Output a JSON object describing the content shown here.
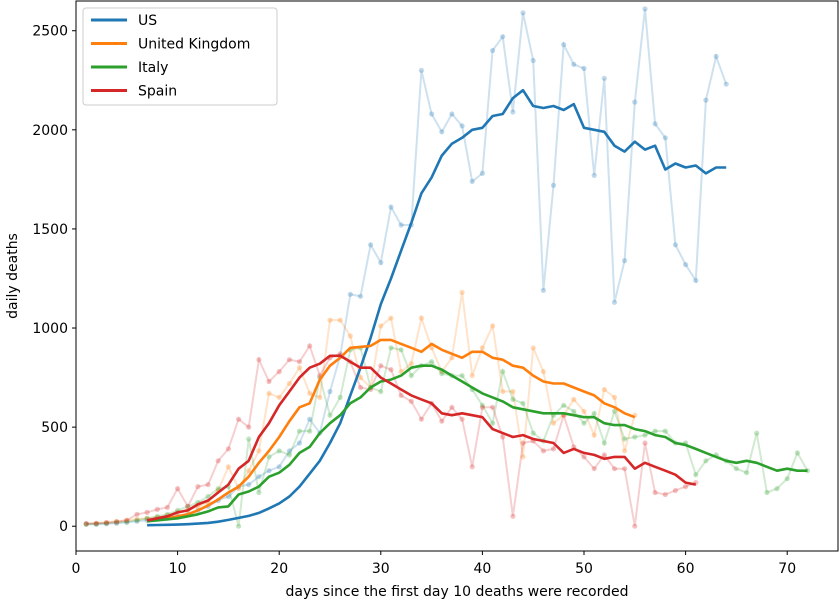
{
  "chart_data": {
    "type": "line",
    "title": "",
    "xlabel": "days since the first day 10 deaths were recorded",
    "ylabel": "daily deaths",
    "xlim": [
      0,
      75
    ],
    "ylim": [
      -125,
      2650
    ],
    "x_ticks": [
      0,
      10,
      20,
      30,
      40,
      50,
      60,
      70
    ],
    "y_ticks": [
      0,
      500,
      1000,
      1500,
      2000,
      2500
    ],
    "grid": false,
    "legend_position": "top-left",
    "series": [
      {
        "name": "US",
        "color": "#1f77b4",
        "raw_x": [
          1,
          2,
          3,
          4,
          5,
          6,
          7,
          8,
          9,
          10,
          11,
          12,
          13,
          14,
          15,
          16,
          17,
          18,
          19,
          20,
          21,
          22,
          23,
          24,
          25,
          26,
          27,
          28,
          29,
          30,
          31,
          32,
          33,
          34,
          35,
          36,
          37,
          38,
          39,
          40,
          41,
          42,
          43,
          44,
          45,
          46,
          47,
          48,
          49,
          50,
          51,
          52,
          53,
          54,
          55,
          56,
          57,
          58,
          59,
          60,
          61,
          62,
          63,
          64
        ],
        "raw_y": [
          10,
          9,
          12,
          15,
          20,
          25,
          30,
          35,
          40,
          50,
          60,
          80,
          100,
          130,
          150,
          200,
          210,
          250,
          280,
          300,
          380,
          420,
          540,
          470,
          680,
          860,
          1170,
          1160,
          1420,
          1330,
          1610,
          1520,
          1520,
          2300,
          2080,
          1990,
          2080,
          2020,
          1740,
          1780,
          2400,
          2470,
          2090,
          2590,
          2350,
          1190,
          1720,
          2430,
          2330,
          2310,
          1770,
          2260,
          1130,
          1340,
          2140,
          2610,
          2030,
          1960,
          1420,
          1320,
          1240,
          2150,
          2370,
          2230
        ],
        "avg_x": [
          7,
          8,
          9,
          10,
          11,
          12,
          13,
          14,
          15,
          16,
          17,
          18,
          19,
          20,
          21,
          22,
          23,
          24,
          25,
          26,
          27,
          28,
          29,
          30,
          31,
          32,
          33,
          34,
          35,
          36,
          37,
          38,
          39,
          40,
          41,
          42,
          43,
          44,
          45,
          46,
          47,
          48,
          49,
          50,
          51,
          52,
          53,
          54,
          55,
          56,
          57,
          58,
          59,
          60,
          61,
          62,
          63,
          64
        ],
        "avg_y": [
          5,
          6,
          7,
          8,
          10,
          13,
          17,
          23,
          32,
          42,
          52,
          67,
          90,
          115,
          150,
          200,
          265,
          330,
          420,
          520,
          660,
          800,
          950,
          1120,
          1250,
          1390,
          1530,
          1680,
          1760,
          1870,
          1930,
          1960,
          2000,
          2010,
          2070,
          2080,
          2160,
          2200,
          2120,
          2110,
          2120,
          2100,
          2130,
          2010,
          2000,
          1990,
          1920,
          1890,
          1940,
          1900,
          1920,
          1800,
          1830,
          1810,
          1820,
          1780,
          1810,
          1810
        ]
      },
      {
        "name": "United Kingdom",
        "color": "#ff7f0e",
        "raw_x": [
          1,
          2,
          3,
          4,
          5,
          6,
          7,
          8,
          9,
          10,
          11,
          12,
          13,
          14,
          15,
          16,
          17,
          18,
          19,
          20,
          21,
          22,
          23,
          24,
          25,
          26,
          27,
          28,
          29,
          30,
          31,
          32,
          33,
          34,
          35,
          36,
          37,
          38,
          39,
          40,
          41,
          42,
          43,
          44,
          45,
          46,
          47,
          48,
          49,
          50,
          51,
          52,
          53,
          54,
          55
        ],
        "raw_y": [
          10,
          15,
          20,
          25,
          30,
          35,
          40,
          45,
          55,
          70,
          80,
          100,
          120,
          180,
          300,
          190,
          280,
          380,
          670,
          650,
          720,
          800,
          670,
          650,
          1040,
          1040,
          960,
          750,
          700,
          1010,
          1050,
          780,
          820,
          1050,
          900,
          780,
          850,
          1180,
          760,
          900,
          1010,
          680,
          680,
          350,
          900,
          780,
          520,
          560,
          640,
          580,
          460,
          690,
          650,
          380,
          560
        ],
        "avg_x": [
          8,
          9,
          10,
          11,
          12,
          13,
          14,
          15,
          16,
          17,
          18,
          19,
          20,
          21,
          22,
          23,
          24,
          25,
          26,
          27,
          28,
          29,
          30,
          31,
          32,
          33,
          34,
          35,
          36,
          37,
          38,
          39,
          40,
          41,
          42,
          43,
          44,
          45,
          46,
          47,
          48,
          49,
          50,
          51,
          52,
          53,
          54,
          55
        ],
        "avg_y": [
          30,
          40,
          50,
          60,
          80,
          105,
          135,
          170,
          200,
          250,
          320,
          380,
          450,
          530,
          600,
          620,
          740,
          810,
          850,
          900,
          905,
          910,
          940,
          940,
          920,
          900,
          880,
          920,
          890,
          870,
          850,
          880,
          880,
          850,
          840,
          810,
          800,
          760,
          730,
          720,
          720,
          700,
          680,
          660,
          620,
          600,
          570,
          550
        ]
      },
      {
        "name": "Italy",
        "color": "#2ca02c",
        "raw_x": [
          1,
          2,
          3,
          4,
          5,
          6,
          7,
          8,
          9,
          10,
          11,
          12,
          13,
          14,
          15,
          16,
          17,
          18,
          19,
          20,
          21,
          22,
          23,
          24,
          25,
          26,
          27,
          28,
          29,
          30,
          31,
          32,
          33,
          34,
          35,
          36,
          37,
          38,
          39,
          40,
          41,
          42,
          43,
          44,
          45,
          46,
          47,
          48,
          49,
          50,
          51,
          52,
          53,
          54,
          55,
          56,
          57,
          58,
          59,
          60,
          61,
          62,
          63,
          64,
          65,
          66,
          67,
          68,
          69,
          70,
          71,
          72
        ],
        "raw_y": [
          10,
          12,
          15,
          20,
          22,
          30,
          40,
          50,
          60,
          80,
          100,
          120,
          150,
          190,
          200,
          0,
          440,
          170,
          350,
          380,
          360,
          480,
          480,
          750,
          560,
          650,
          890,
          900,
          700,
          680,
          900,
          890,
          760,
          810,
          830,
          770,
          760,
          760,
          690,
          610,
          520,
          780,
          640,
          620,
          470,
          430,
          560,
          610,
          580,
          520,
          570,
          420,
          580,
          440,
          450,
          460,
          480,
          480,
          420,
          420,
          260,
          330,
          360,
          330,
          290,
          270,
          470,
          170,
          190,
          240,
          370,
          280
        ],
        "avg_x": [
          7,
          8,
          9,
          10,
          11,
          12,
          13,
          14,
          15,
          16,
          17,
          18,
          19,
          20,
          21,
          22,
          23,
          24,
          25,
          26,
          27,
          28,
          29,
          30,
          31,
          32,
          33,
          34,
          35,
          36,
          37,
          38,
          39,
          40,
          41,
          42,
          43,
          44,
          45,
          46,
          47,
          48,
          49,
          50,
          51,
          52,
          53,
          54,
          55,
          56,
          57,
          58,
          59,
          60,
          61,
          62,
          63,
          64,
          65,
          66,
          67,
          68,
          69,
          70,
          71,
          72
        ],
        "avg_y": [
          25,
          30,
          35,
          40,
          50,
          60,
          75,
          95,
          100,
          160,
          175,
          200,
          250,
          270,
          310,
          370,
          400,
          470,
          520,
          560,
          620,
          650,
          700,
          730,
          740,
          760,
          800,
          810,
          810,
          790,
          760,
          730,
          700,
          670,
          650,
          630,
          600,
          590,
          580,
          570,
          570,
          570,
          560,
          550,
          550,
          520,
          510,
          510,
          490,
          480,
          460,
          450,
          420,
          410,
          390,
          370,
          350,
          330,
          320,
          330,
          320,
          300,
          280,
          290,
          280,
          280
        ]
      },
      {
        "name": "Spain",
        "color": "#d62728",
        "raw_x": [
          1,
          2,
          3,
          4,
          5,
          6,
          7,
          8,
          9,
          10,
          11,
          12,
          13,
          14,
          15,
          16,
          17,
          18,
          19,
          20,
          21,
          22,
          23,
          24,
          25,
          26,
          27,
          28,
          29,
          30,
          31,
          32,
          33,
          34,
          35,
          36,
          37,
          38,
          39,
          40,
          41,
          42,
          43,
          44,
          45,
          46,
          47,
          48,
          49,
          50,
          51,
          52,
          53,
          54,
          55,
          56,
          57,
          58,
          59,
          60,
          61
        ],
        "raw_y": [
          15,
          15,
          18,
          22,
          30,
          60,
          70,
          85,
          95,
          190,
          100,
          200,
          210,
          330,
          390,
          540,
          500,
          840,
          730,
          780,
          840,
          830,
          910,
          760,
          850,
          870,
          830,
          700,
          690,
          810,
          790,
          660,
          630,
          540,
          620,
          530,
          600,
          540,
          300,
          600,
          600,
          450,
          50,
          420,
          430,
          380,
          390,
          560,
          400,
          350,
          290,
          360,
          290,
          290,
          0,
          420,
          170,
          160,
          180,
          200,
          220
        ],
        "avg_x": [
          7,
          8,
          9,
          10,
          11,
          12,
          13,
          14,
          15,
          16,
          17,
          18,
          19,
          20,
          21,
          22,
          23,
          24,
          25,
          26,
          27,
          28,
          29,
          30,
          31,
          32,
          33,
          34,
          35,
          36,
          37,
          38,
          39,
          40,
          41,
          42,
          43,
          44,
          45,
          46,
          47,
          48,
          49,
          50,
          51,
          52,
          53,
          54,
          55,
          56,
          57,
          58,
          59,
          60,
          61
        ],
        "avg_y": [
          30,
          40,
          50,
          70,
          80,
          110,
          130,
          170,
          210,
          290,
          330,
          450,
          520,
          610,
          680,
          750,
          800,
          820,
          860,
          860,
          830,
          800,
          800,
          750,
          720,
          690,
          660,
          640,
          620,
          570,
          560,
          570,
          560,
          550,
          490,
          470,
          450,
          460,
          440,
          430,
          420,
          370,
          390,
          370,
          360,
          340,
          350,
          350,
          290,
          320,
          300,
          280,
          260,
          220,
          210
        ]
      }
    ]
  }
}
